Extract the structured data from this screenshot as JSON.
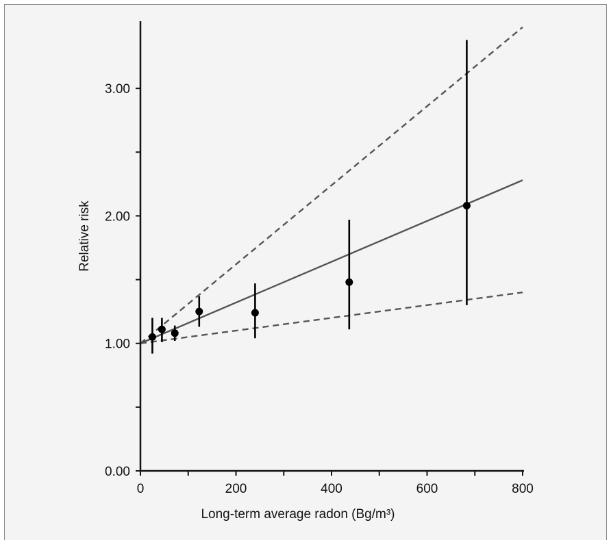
{
  "chart_data": {
    "type": "scatter",
    "title": "",
    "xlabel": "Long-term average radon (Bg/m³)",
    "ylabel": "Relative risk",
    "xlim": [
      0,
      800
    ],
    "ylim": [
      0,
      3.5
    ],
    "x_ticks_labeled": [
      0,
      200,
      400,
      600,
      800
    ],
    "x_ticks_minor": [
      100,
      300,
      500,
      700
    ],
    "y_ticks_labeled": [
      "0.00",
      "1.00",
      "2.00",
      "3.00"
    ],
    "y_ticks_minor": [
      0.5,
      1.5,
      2.5
    ],
    "grid": false,
    "legend": "none",
    "series": [
      {
        "type": "scatter_with_error_bars",
        "x": [
          25,
          45,
          72,
          123,
          240,
          437,
          683
        ],
        "y": [
          1.05,
          1.11,
          1.08,
          1.25,
          1.24,
          1.48,
          2.08
        ],
        "ci_low": [
          0.92,
          1.01,
          1.02,
          1.13,
          1.04,
          1.11,
          1.3
        ],
        "ci_high": [
          1.2,
          1.2,
          1.14,
          1.37,
          1.47,
          1.97,
          3.38
        ]
      },
      {
        "type": "line",
        "style": "solid",
        "x": [
          0,
          800
        ],
        "y": [
          1.0,
          2.28
        ]
      },
      {
        "type": "line",
        "style": "dashed",
        "x": [
          0,
          800
        ],
        "y": [
          1.0,
          3.48
        ]
      },
      {
        "type": "line",
        "style": "dashed",
        "x": [
          0,
          800
        ],
        "y": [
          1.0,
          1.4
        ]
      }
    ],
    "colors": {
      "background": "#f4f4f4",
      "points": "#000000",
      "fit_line": "#555555",
      "ci_lines": "#555555"
    }
  }
}
